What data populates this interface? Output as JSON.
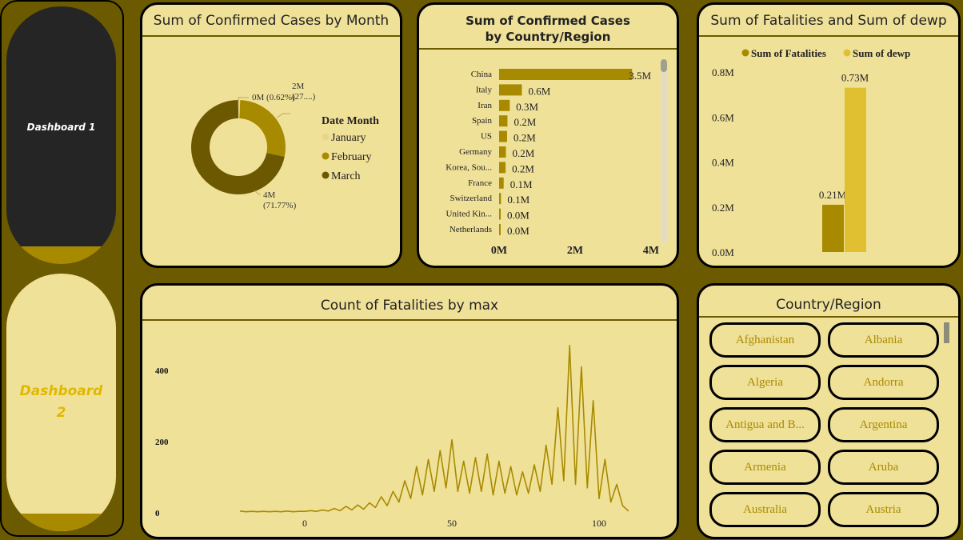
{
  "nav": {
    "dashboard1": "Dashboard 1",
    "dashboard2": "Dashboard 2"
  },
  "colors": {
    "background": "#6b5a00",
    "panel": "#f0e199",
    "accent": "#a88a00",
    "dark": "#6b5800",
    "light": "#e0c030",
    "nav_active": "#252525"
  },
  "donut": {
    "title": "Sum of Confirmed Cases by Month",
    "legend_title": "Date Month",
    "chart_data": {
      "type": "pie",
      "categories": [
        "January",
        "February",
        "March"
      ],
      "percent": [
        0.62,
        27.61,
        71.77
      ],
      "labels": [
        "0M (0.62%)",
        "2M (27....)",
        "4M (71.77%)"
      ],
      "colors": [
        "#e6d68c",
        "#a88a00",
        "#6b5800"
      ],
      "legend": "right"
    }
  },
  "bars": {
    "title": "Sum of Confirmed Cases by Country/Region",
    "chart_data": {
      "type": "bar",
      "orientation": "horizontal",
      "categories": [
        "China",
        "Italy",
        "Iran",
        "Spain",
        "US",
        "Germany",
        "Korea, Sou...",
        "France",
        "Switzerland",
        "United Kin...",
        "Netherlands"
      ],
      "values": [
        3.5,
        0.6,
        0.28,
        0.22,
        0.21,
        0.18,
        0.17,
        0.12,
        0.05,
        0.03,
        0.02
      ],
      "data_labels": [
        "3.5M",
        "0.6M",
        "0.3M",
        "0.2M",
        "0.2M",
        "0.2M",
        "0.2M",
        "0.1M",
        "0.1M",
        "0.0M",
        "0.0M"
      ],
      "xticks": [
        "0M",
        "2M",
        "4M"
      ],
      "xlim": [
        0,
        4
      ],
      "unit": "M"
    }
  },
  "fatal": {
    "title": "Sum of Fatalities and Sum of dewp",
    "chart_data": {
      "type": "bar",
      "series": [
        {
          "name": "Sum of Fatalities",
          "value": 0.21,
          "label": "0.21M",
          "color": "#a88a00"
        },
        {
          "name": "Sum of dewp",
          "value": 0.73,
          "label": "0.73M",
          "color": "#e0c030"
        }
      ],
      "yticks": [
        "0.0M",
        "0.2M",
        "0.4M",
        "0.6M",
        "0.8M"
      ],
      "ylim": [
        0,
        0.8
      ],
      "legend": "top"
    }
  },
  "line": {
    "title": "Count of Fatalities by max",
    "chart_data": {
      "type": "line",
      "xticks": [
        "0",
        "50",
        "100"
      ],
      "yticks": [
        "0",
        "200",
        "400"
      ],
      "ylim": [
        0,
        480
      ],
      "xlim": [
        -25,
        112
      ],
      "x": [
        -22,
        -20,
        -18,
        -16,
        -14,
        -12,
        -10,
        -8,
        -6,
        -4,
        -2,
        0,
        2,
        4,
        6,
        8,
        10,
        12,
        14,
        16,
        18,
        20,
        22,
        24,
        26,
        28,
        30,
        32,
        34,
        36,
        38,
        40,
        42,
        44,
        46,
        48,
        50,
        52,
        54,
        56,
        58,
        60,
        62,
        64,
        66,
        68,
        70,
        72,
        74,
        76,
        78,
        80,
        82,
        84,
        86,
        88,
        90,
        92,
        94,
        96,
        98,
        100,
        102,
        104,
        106,
        108,
        110
      ],
      "y": [
        5,
        3,
        4,
        3,
        4,
        3,
        4,
        3,
        5,
        3,
        4,
        4,
        6,
        4,
        8,
        5,
        12,
        6,
        18,
        8,
        22,
        10,
        28,
        15,
        45,
        20,
        60,
        30,
        90,
        40,
        130,
        50,
        150,
        60,
        175,
        70,
        205,
        60,
        145,
        55,
        155,
        60,
        165,
        50,
        145,
        55,
        130,
        50,
        115,
        55,
        135,
        60,
        190,
        80,
        295,
        90,
        470,
        80,
        410,
        70,
        315,
        40,
        150,
        30,
        80,
        20,
        5
      ]
    }
  },
  "countries": {
    "title": "Country/Region",
    "items": [
      "Afghanistan",
      "Albania",
      "Algeria",
      "Andorra",
      "Antigua and B...",
      "Argentina",
      "Armenia",
      "Aruba",
      "Australia",
      "Austria"
    ]
  }
}
